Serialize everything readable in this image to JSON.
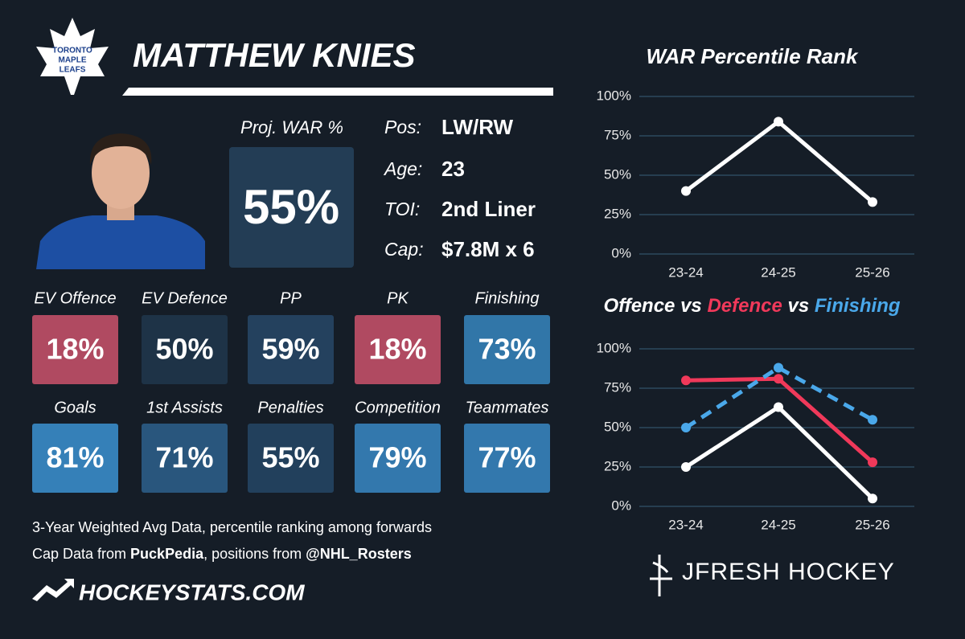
{
  "header": {
    "logo": [
      "TORONTO",
      "MAPLE",
      "LEAFS"
    ],
    "player": "MATTHEW KNIES"
  },
  "proj_war": {
    "label": "Proj. WAR %",
    "value": "55%"
  },
  "bio": [
    {
      "label": "Pos:",
      "value": "LW/RW"
    },
    {
      "label": "Age:",
      "value": "23"
    },
    {
      "label": "TOI:",
      "value": "2nd Liner"
    },
    {
      "label": "Cap:",
      "value": "$7.8M x 6"
    }
  ],
  "tiles": [
    {
      "label": "EV Offence",
      "value": "18%",
      "color": "#b04a61"
    },
    {
      "label": "EV Defence",
      "value": "50%",
      "color": "#1e3347"
    },
    {
      "label": "PP",
      "value": "59%",
      "color": "#24415e"
    },
    {
      "label": "PK",
      "value": "18%",
      "color": "#b04a61"
    },
    {
      "label": "Finishing",
      "value": "73%",
      "color": "#3176a8"
    },
    {
      "label": "Goals",
      "value": "81%",
      "color": "#3580b8"
    },
    {
      "label": "1st Assists",
      "value": "71%",
      "color": "#29567d"
    },
    {
      "label": "Penalties",
      "value": "55%",
      "color": "#22405c"
    },
    {
      "label": "Competition",
      "value": "79%",
      "color": "#3378ad"
    },
    {
      "label": "Teammates",
      "value": "77%",
      "color": "#3378ad"
    }
  ],
  "notes": {
    "line1": "3-Year Weighted Avg Data, percentile ranking among forwards",
    "line2": [
      "Cap Data from ",
      "PuckPedia",
      ", positions from ",
      "@NHL_Rosters"
    ]
  },
  "brand": "HOCKEYSTATS.COM",
  "credit": "JFRESH HOCKEY",
  "chart_data": [
    {
      "type": "line",
      "title": "WAR Percentile Rank",
      "categories": [
        "23-24",
        "24-25",
        "25-26"
      ],
      "series": [
        {
          "color": "#ffffff",
          "values": [
            40,
            84,
            33
          ]
        }
      ],
      "ylim": [
        0,
        100
      ],
      "yticks": [
        {
          "value": 0,
          "label": "0%"
        },
        {
          "value": 25,
          "label": "25%"
        },
        {
          "value": 50,
          "label": "50%"
        },
        {
          "value": 75,
          "label": "75%"
        },
        {
          "value": 100,
          "label": "100%"
        }
      ],
      "grid": true
    },
    {
      "type": "line",
      "title_sep": "vs",
      "categories": [
        "23-24",
        "24-25",
        "25-26"
      ],
      "series": [
        {
          "name": "Offence",
          "color": "#ffffff",
          "values": [
            25,
            63,
            5
          ]
        },
        {
          "name": "Defence",
          "color": "#f0395a",
          "values": [
            80,
            81,
            28
          ]
        },
        {
          "name": "Finishing",
          "color": "#4aa8ea",
          "values": [
            50,
            88,
            55
          ],
          "dashed": true
        }
      ],
      "ylim": [
        0,
        100
      ],
      "yticks": [
        {
          "value": 0,
          "label": "0%"
        },
        {
          "value": 25,
          "label": "25%"
        },
        {
          "value": 50,
          "label": "50%"
        },
        {
          "value": 75,
          "label": "75%"
        },
        {
          "value": 100,
          "label": "100%"
        }
      ],
      "grid": true
    }
  ]
}
